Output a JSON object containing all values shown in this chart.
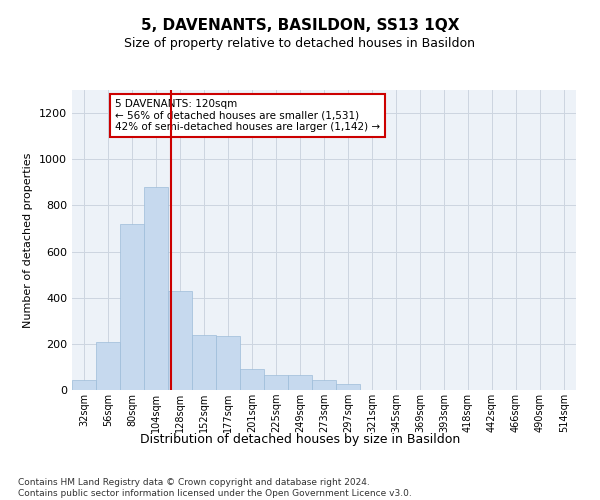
{
  "title": "5, DAVENANTS, BASILDON, SS13 1QX",
  "subtitle": "Size of property relative to detached houses in Basildon",
  "xlabel": "Distribution of detached houses by size in Basildon",
  "ylabel": "Number of detached properties",
  "footnote": "Contains HM Land Registry data © Crown copyright and database right 2024.\nContains public sector information licensed under the Open Government Licence v3.0.",
  "bar_color": "#c6d9ee",
  "bar_edge_color": "#9dbcd9",
  "grid_color": "#cdd5e0",
  "background_color": "#edf2f8",
  "annotation_box_color": "#cc0000",
  "vline_color": "#cc0000",
  "categories": [
    "32sqm",
    "56sqm",
    "80sqm",
    "104sqm",
    "128sqm",
    "152sqm",
    "177sqm",
    "201sqm",
    "225sqm",
    "249sqm",
    "273sqm",
    "297sqm",
    "321sqm",
    "345sqm",
    "369sqm",
    "393sqm",
    "418sqm",
    "442sqm",
    "466sqm",
    "490sqm",
    "514sqm"
  ],
  "values": [
    45,
    210,
    720,
    880,
    430,
    240,
    235,
    90,
    65,
    65,
    45,
    25,
    0,
    0,
    0,
    0,
    0,
    0,
    0,
    0,
    0
  ],
  "annotation_line1": "5 DAVENANTS: 120sqm",
  "annotation_line2": "← 56% of detached houses are smaller (1,531)",
  "annotation_line3": "42% of semi-detached houses are larger (1,142) →",
  "vline_x": 3.62,
  "ylim": [
    0,
    1300
  ],
  "yticks": [
    0,
    200,
    400,
    600,
    800,
    1000,
    1200
  ],
  "title_fontsize": 11,
  "subtitle_fontsize": 9,
  "ylabel_fontsize": 8,
  "xlabel_fontsize": 9,
  "footnote_fontsize": 6.5
}
